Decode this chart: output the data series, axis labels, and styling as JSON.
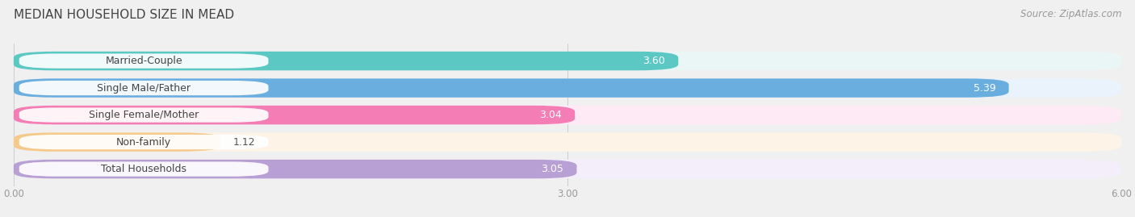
{
  "title": "MEDIAN HOUSEHOLD SIZE IN MEAD",
  "source": "Source: ZipAtlas.com",
  "categories": [
    "Married-Couple",
    "Single Male/Father",
    "Single Female/Mother",
    "Non-family",
    "Total Households"
  ],
  "values": [
    3.6,
    5.39,
    3.04,
    1.12,
    3.05
  ],
  "bar_colors": [
    "#5bc8c4",
    "#6aaee0",
    "#f47db5",
    "#f5c98a",
    "#b89fd4"
  ],
  "bar_bg_colors": [
    "#eaf6f6",
    "#eaf3fb",
    "#fdeaf4",
    "#fdf3e6",
    "#f3eef9"
  ],
  "xmin": 0.0,
  "xmax": 6.0,
  "xticks": [
    0.0,
    3.0,
    6.0
  ],
  "background_color": "#f0f0f0",
  "title_fontsize": 11,
  "label_fontsize": 9,
  "value_fontsize": 9,
  "source_fontsize": 8.5
}
